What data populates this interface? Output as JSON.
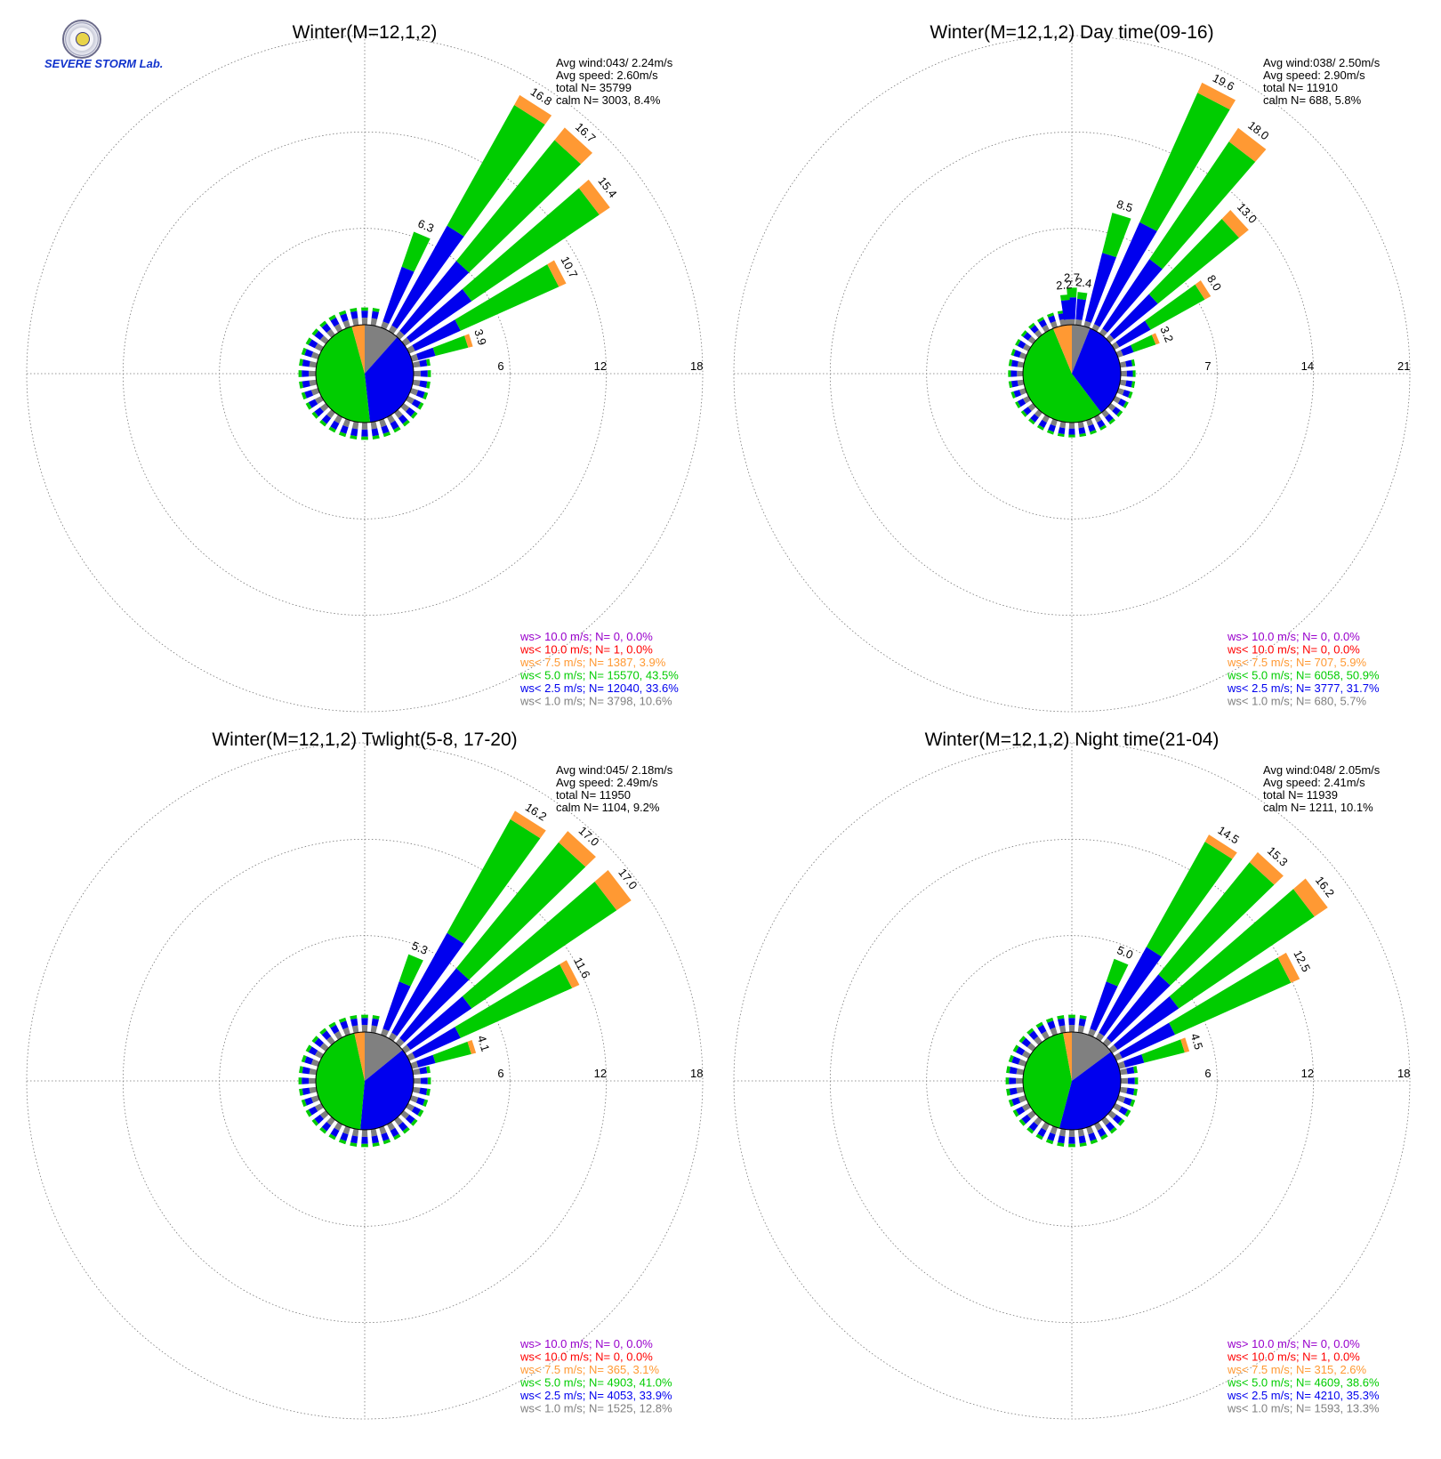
{
  "logo": {
    "text": "SEVERE STORM Lab."
  },
  "legend_colors": {
    "gt10": "#9900cc",
    "lt10": "#ff0000",
    "lt7_5": "#ff9933",
    "lt5": "#00cc00",
    "lt2_5": "#0000ee",
    "lt1": "#808080"
  },
  "chart_data": [
    {
      "type": "wind-rose",
      "title": "Winter(M=12,1,2)",
      "rings": [
        "6",
        "12",
        "18"
      ],
      "rmax": 18,
      "stats": [
        "Avg wind:043/ 2.24m/s",
        "Avg speed: 2.60m/s",
        "total N=      35799",
        "calm N=   3003,   8.4%"
      ],
      "legend": [
        {
          "text": "ws> 10.0 m/s; N=     0,  0.0%",
          "key": "gt10"
        },
        {
          "text": "ws< 10.0 m/s; N=     1,  0.0%",
          "key": "lt10"
        },
        {
          "text": "ws<  7.5 m/s; N=  1387,  3.9%",
          "key": "lt7_5"
        },
        {
          "text": "ws<  5.0 m/s; N= 15570, 43.5%",
          "key": "lt5"
        },
        {
          "text": "ws<  2.5 m/s; N= 12040, 33.6%",
          "key": "lt2_5"
        },
        {
          "text": "ws<  1.0 m/s; N=  3798, 10.6%",
          "key": "lt1"
        }
      ],
      "pie": [
        10.6,
        33.6,
        43.5,
        3.9,
        0.0,
        0.0
      ],
      "petals": [
        {
          "dir": 22.5,
          "total": 6.3,
          "label": "6.3",
          "lt2_5": 4.0,
          "lt5": 2.3,
          "lt7_5": 0
        },
        {
          "dir": 32.5,
          "total": 16.8,
          "label": "16.8",
          "lt2_5": 7.5,
          "lt5": 8.6,
          "lt7_5": 0.7
        },
        {
          "dir": 42.5,
          "total": 16.7,
          "label": "16.7",
          "lt2_5": 6.0,
          "lt5": 9.7,
          "lt7_5": 1.0
        },
        {
          "dir": 52.5,
          "total": 15.4,
          "label": "15.4",
          "lt2_5": 5.0,
          "lt5": 9.6,
          "lt7_5": 0.8
        },
        {
          "dir": 62.5,
          "total": 10.7,
          "label": "10.7",
          "lt2_5": 3.5,
          "lt5": 6.7,
          "lt7_5": 0.5
        },
        {
          "dir": 72.5,
          "total": 3.9,
          "label": "3.9",
          "lt2_5": 1.5,
          "lt5": 2.1,
          "lt7_5": 0.3
        }
      ],
      "small": 0.8
    },
    {
      "type": "wind-rose",
      "title": "Winter(M=12,1,2) Day time(09-16)",
      "rings": [
        "7",
        "14",
        "21"
      ],
      "rmax": 21,
      "stats": [
        "Avg wind:038/ 2.50m/s",
        "Avg speed: 2.90m/s",
        "total N=      11910",
        "calm N=    688,   5.8%"
      ],
      "legend": [
        {
          "text": "ws> 10.0 m/s; N=     0,  0.0%",
          "key": "gt10"
        },
        {
          "text": "ws< 10.0 m/s; N=     0,  0.0%",
          "key": "lt10"
        },
        {
          "text": "ws<  7.5 m/s; N=   707,  5.9%",
          "key": "lt7_5"
        },
        {
          "text": "ws<  5.0 m/s; N=  6058, 50.9%",
          "key": "lt5"
        },
        {
          "text": "ws<  2.5 m/s; N=  3777, 31.7%",
          "key": "lt2_5"
        },
        {
          "text": "ws<  1.0 m/s; N=   680,  5.7%",
          "key": "lt1"
        }
      ],
      "pie": [
        5.7,
        31.7,
        50.9,
        5.9,
        0.0,
        0.0
      ],
      "petals": [
        {
          "dir": 0.0,
          "total": 2.7,
          "label": "2.7",
          "lt2_5": 2.0,
          "lt5": 0.7,
          "lt7_5": 0
        },
        {
          "dir": -5.0,
          "total": 2.2,
          "label": "2.2",
          "lt2_5": 1.8,
          "lt5": 0.4,
          "lt7_5": 0
        },
        {
          "dir": 7.5,
          "total": 2.4,
          "label": "2.4",
          "lt2_5": 1.9,
          "lt5": 0.5,
          "lt7_5": 0
        },
        {
          "dir": 17.5,
          "total": 8.5,
          "label": "8.5",
          "lt2_5": 5.5,
          "lt5": 3.0,
          "lt7_5": 0
        },
        {
          "dir": 27.5,
          "total": 19.6,
          "label": "19.6",
          "lt2_5": 8.5,
          "lt5": 10.3,
          "lt7_5": 0.8
        },
        {
          "dir": 37.5,
          "total": 18.0,
          "label": "18.0",
          "lt2_5": 6.5,
          "lt5": 10.3,
          "lt7_5": 1.2
        },
        {
          "dir": 47.5,
          "total": 13.0,
          "label": "13.0",
          "lt2_5": 4.5,
          "lt5": 7.6,
          "lt7_5": 0.9
        },
        {
          "dir": 57.5,
          "total": 8.0,
          "label": "8.0",
          "lt2_5": 3.0,
          "lt5": 4.5,
          "lt7_5": 0.5
        },
        {
          "dir": 67.5,
          "total": 3.2,
          "label": "3.2",
          "lt2_5": 1.2,
          "lt5": 1.7,
          "lt7_5": 0.3
        }
      ],
      "small": 0.8
    },
    {
      "type": "wind-rose",
      "title": "Winter(M=12,1,2) Twlight(5-8, 17-20)",
      "rings": [
        "6",
        "12",
        "18"
      ],
      "rmax": 18,
      "stats": [
        "Avg wind:045/ 2.18m/s",
        "Avg speed: 2.49m/s",
        "total N=      11950",
        "calm N=   1104,   9.2%"
      ],
      "legend": [
        {
          "text": "ws> 10.0 m/s; N=     0,  0.0%",
          "key": "gt10"
        },
        {
          "text": "ws< 10.0 m/s; N=     0,  0.0%",
          "key": "lt10"
        },
        {
          "text": "ws<  7.5 m/s; N=   365,  3.1%",
          "key": "lt7_5"
        },
        {
          "text": "ws<  5.0 m/s; N=  4903, 41.0%",
          "key": "lt5"
        },
        {
          "text": "ws<  2.5 m/s; N=  4053, 33.9%",
          "key": "lt2_5"
        },
        {
          "text": "ws<  1.0 m/s; N=  1525, 12.8%",
          "key": "lt1"
        }
      ],
      "pie": [
        12.8,
        33.9,
        41.0,
        3.1,
        0.0,
        0.0
      ],
      "petals": [
        {
          "dir": 22.5,
          "total": 5.3,
          "label": "5.3",
          "lt2_5": 3.5,
          "lt5": 1.8,
          "lt7_5": 0
        },
        {
          "dir": 32.5,
          "total": 16.2,
          "label": "16.2",
          "lt2_5": 7.5,
          "lt5": 8.1,
          "lt7_5": 0.6
        },
        {
          "dir": 42.5,
          "total": 17.0,
          "label": "17.0",
          "lt2_5": 6.0,
          "lt5": 10.1,
          "lt7_5": 0.9
        },
        {
          "dir": 52.5,
          "total": 17.0,
          "label": "17.0",
          "lt2_5": 5.0,
          "lt5": 10.9,
          "lt7_5": 1.1
        },
        {
          "dir": 62.5,
          "total": 11.6,
          "label": "11.6",
          "lt2_5": 3.5,
          "lt5": 7.6,
          "lt7_5": 0.5
        },
        {
          "dir": 72.5,
          "total": 4.1,
          "label": "4.1",
          "lt2_5": 1.5,
          "lt5": 2.3,
          "lt7_5": 0.3
        }
      ],
      "small": 0.8
    },
    {
      "type": "wind-rose",
      "title": "Winter(M=12,1,2) Night time(21-04)",
      "rings": [
        "6",
        "12",
        "18"
      ],
      "rmax": 18,
      "stats": [
        "Avg wind:048/ 2.05m/s",
        "Avg speed: 2.41m/s",
        "total N=      11939",
        "calm N=   1211,  10.1%"
      ],
      "legend": [
        {
          "text": "ws> 10.0 m/s; N=     0,  0.0%",
          "key": "gt10"
        },
        {
          "text": "ws< 10.0 m/s; N=     1,  0.0%",
          "key": "lt10"
        },
        {
          "text": "ws<  7.5 m/s; N=   315,  2.6%",
          "key": "lt7_5"
        },
        {
          "text": "ws<  5.0 m/s; N=  4609, 38.6%",
          "key": "lt5"
        },
        {
          "text": "ws<  2.5 m/s; N=  4210, 35.3%",
          "key": "lt2_5"
        },
        {
          "text": "ws<  1.0 m/s; N=  1593, 13.3%",
          "key": "lt1"
        }
      ],
      "pie": [
        13.3,
        35.3,
        38.6,
        2.6,
        0.0,
        0.0
      ],
      "petals": [
        {
          "dir": 22.5,
          "total": 5.0,
          "label": "5.0",
          "lt2_5": 3.5,
          "lt5": 1.5,
          "lt7_5": 0
        },
        {
          "dir": 32.5,
          "total": 14.5,
          "label": "14.5",
          "lt2_5": 6.5,
          "lt5": 7.5,
          "lt7_5": 0.5
        },
        {
          "dir": 42.5,
          "total": 15.3,
          "label": "15.3",
          "lt2_5": 5.5,
          "lt5": 9.0,
          "lt7_5": 0.8
        },
        {
          "dir": 52.5,
          "total": 16.2,
          "label": "16.2",
          "lt2_5": 5.0,
          "lt5": 10.2,
          "lt7_5": 1.0
        },
        {
          "dir": 62.5,
          "total": 12.5,
          "label": "12.5",
          "lt2_5": 4.0,
          "lt5": 7.9,
          "lt7_5": 0.6
        },
        {
          "dir": 72.5,
          "total": 4.5,
          "label": "4.5",
          "lt2_5": 1.6,
          "lt5": 2.6,
          "lt7_5": 0.3
        }
      ],
      "small": 0.8
    }
  ]
}
